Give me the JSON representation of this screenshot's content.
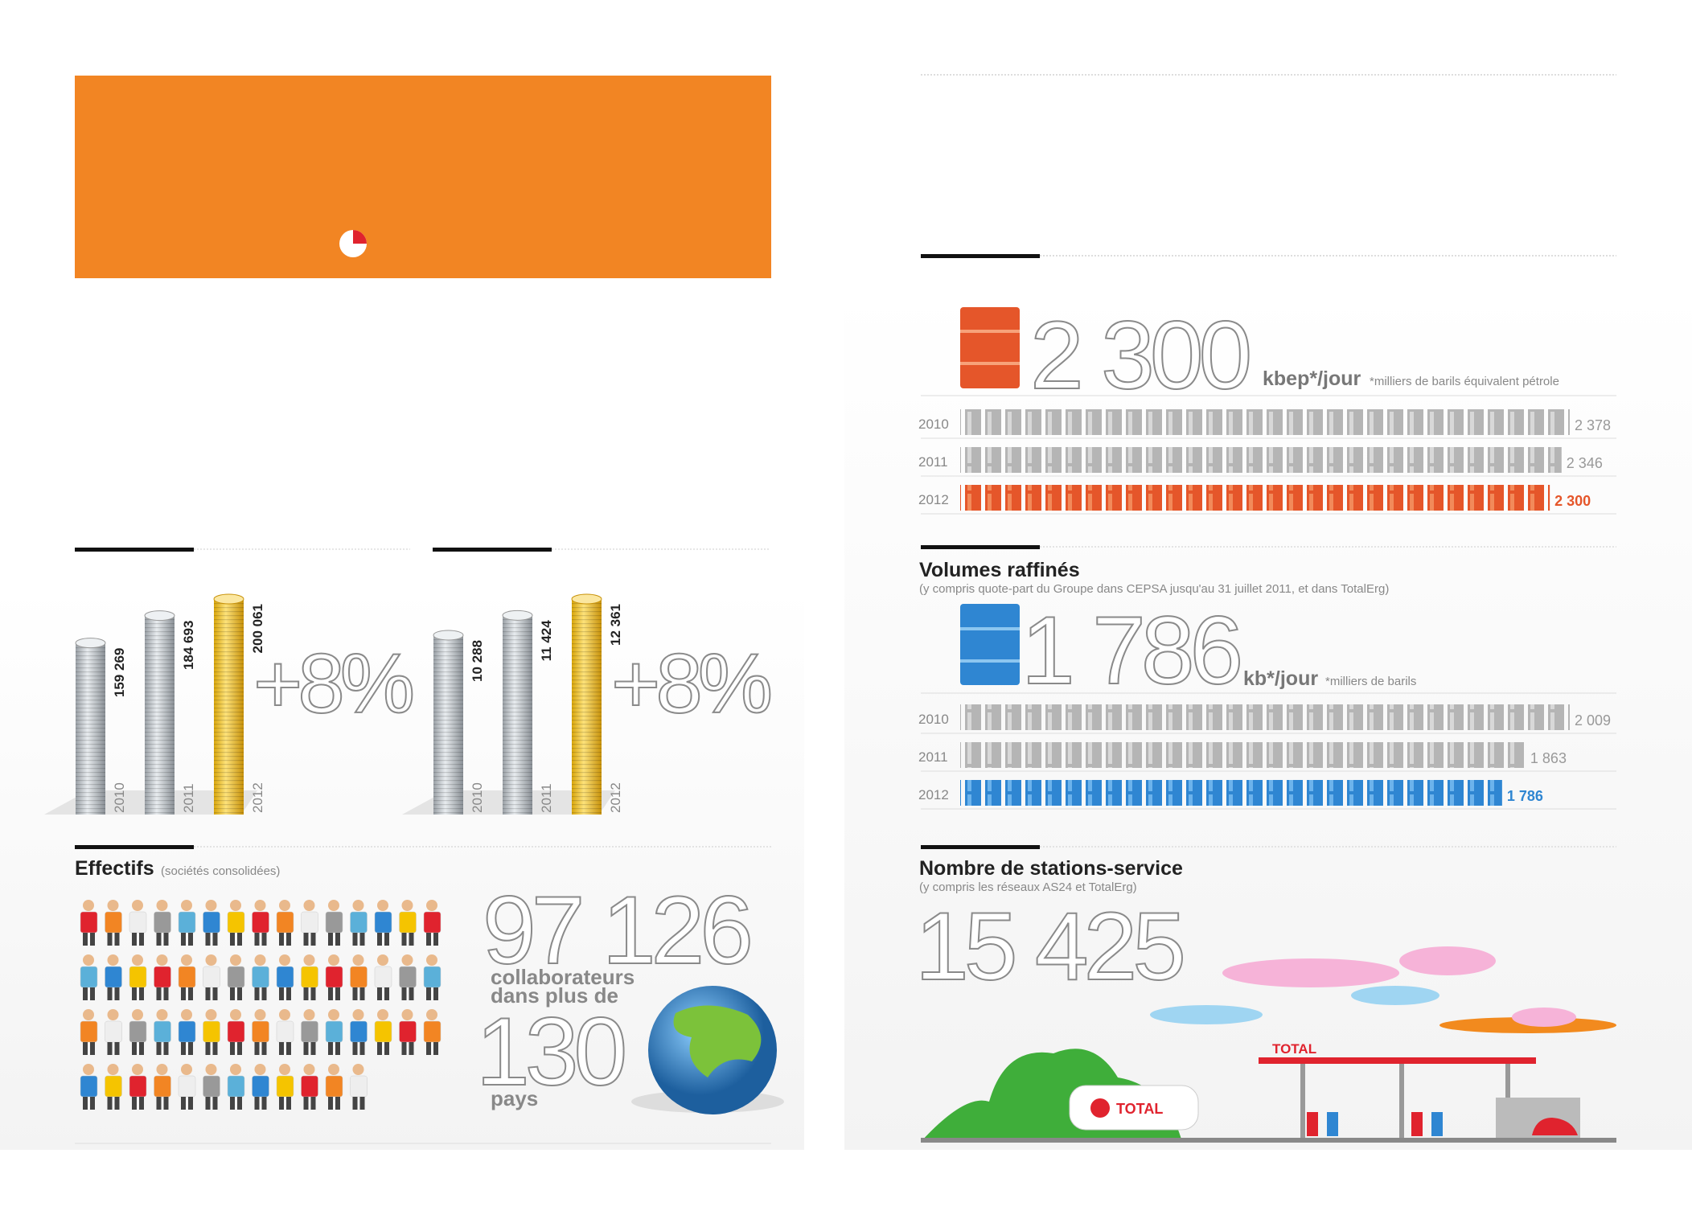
{
  "coin_panels": [
    {
      "stacks": [
        {
          "year": "2010",
          "amount": {
            "value": 159269,
            "label": "159 269"
          }
        },
        {
          "year": "2011",
          "amount": {
            "value": 184693,
            "label": "184 693"
          }
        },
        {
          "year": "2012",
          "amount": {
            "value": 200061,
            "label": "200 061"
          }
        }
      ],
      "change": "+8%"
    },
    {
      "stacks": [
        {
          "year": "2010",
          "amount": {
            "value": 10288,
            "label": "10 288"
          }
        },
        {
          "year": "2011",
          "amount": {
            "value": 11424,
            "label": "11 424"
          }
        },
        {
          "year": "2012",
          "amount": {
            "value": 12361,
            "label": "12 361"
          }
        }
      ],
      "change": "+8%"
    }
  ],
  "effectifs": {
    "title": "Effectifs",
    "note": "(sociétés consolidées)",
    "total": "97 126",
    "text": [
      "collaborateurs",
      "dans plus de"
    ],
    "countries": "130",
    "countries_label": "pays"
  },
  "production": {
    "headline": "2 300",
    "unit": "kbep*/jour",
    "note": "*milliers de barils équivalent pétrole",
    "rows": [
      {
        "year": "2010",
        "amount": {
          "value": 2378,
          "label": "2 378"
        }
      },
      {
        "year": "2011",
        "amount": {
          "value": 2346,
          "label": "2 346"
        }
      },
      {
        "year": "2012",
        "amount": {
          "value": 2300,
          "label": "2 300"
        }
      }
    ]
  },
  "refining": {
    "title": "Volumes raffinés",
    "note": "(y compris quote-part du Groupe dans CEPSA jusqu'au 31 juillet 2011, et dans TotalErg)",
    "headline": "1 786",
    "unit": "kb*/jour",
    "unit_note": "*milliers de barils",
    "rows": [
      {
        "year": "2010",
        "amount": {
          "value": 2009,
          "label": "2 009"
        }
      },
      {
        "year": "2011",
        "amount": {
          "value": 1863,
          "label": "1 863"
        }
      },
      {
        "year": "2012",
        "amount": {
          "value": 1786,
          "label": "1 786"
        }
      }
    ]
  },
  "stations": {
    "title": "Nombre de stations-service",
    "note": "(y compris les réseaux AS24 et TotalErg)",
    "headline": "15 425",
    "brand": "TOTAL"
  }
}
